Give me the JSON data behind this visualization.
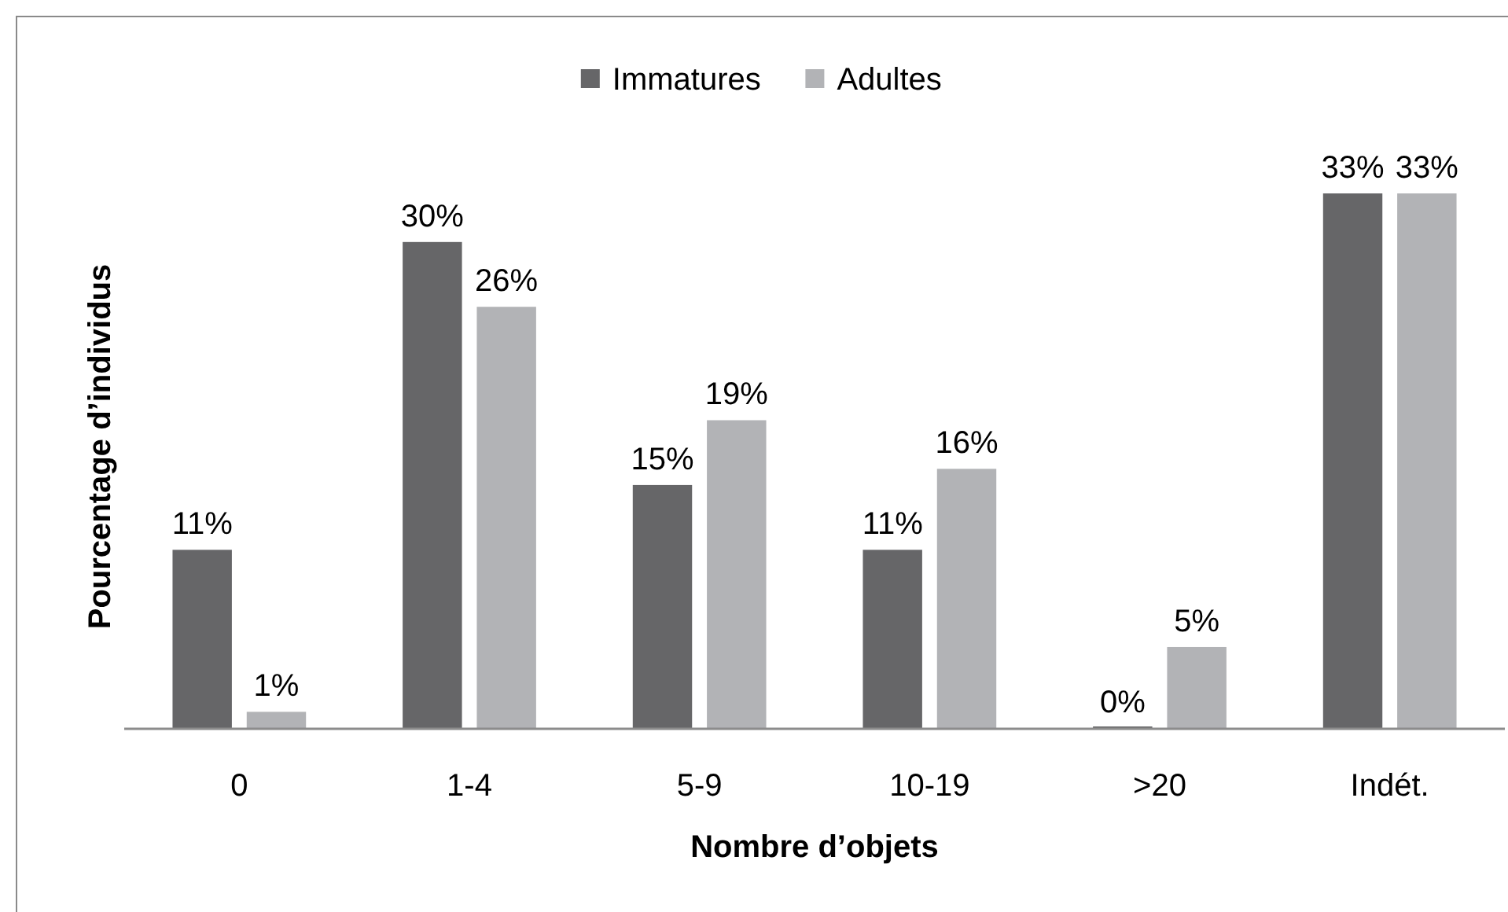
{
  "chart_data": {
    "type": "bar",
    "categories": [
      "0",
      "1-4",
      "5-9",
      "10-19",
      ">20",
      "Indét."
    ],
    "series": [
      {
        "name": "Immatures",
        "color": "#666668",
        "values": [
          11,
          30,
          15,
          11,
          0,
          33
        ],
        "value_labels": [
          "11%",
          "30%",
          "15%",
          "11%",
          "0%",
          "33%"
        ]
      },
      {
        "name": "Adultes",
        "color": "#b2b3b6",
        "values": [
          1,
          26,
          19,
          16,
          5,
          33
        ],
        "value_labels": [
          "1%",
          "26%",
          "19%",
          "16%",
          "5%",
          "33%"
        ]
      }
    ],
    "xlabel": "Nombre d’objets",
    "ylabel": "Pourcentage d’individus",
    "legend": "top"
  }
}
